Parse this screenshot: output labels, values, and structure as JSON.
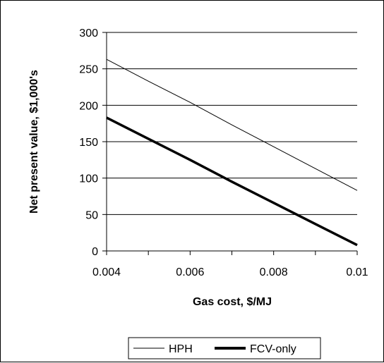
{
  "chart_data": {
    "type": "line",
    "title": "",
    "xlabel": "Gas cost, $/MJ",
    "ylabel": "Net present value, $1,000's",
    "xlim": [
      0.004,
      0.01
    ],
    "ylim": [
      0,
      300
    ],
    "x_ticks": [
      "0.004",
      "0.006",
      "0.008",
      "0.01"
    ],
    "y_ticks": [
      "0",
      "50",
      "100",
      "150",
      "200",
      "250",
      "300"
    ],
    "grid": "horizontal",
    "legend_position": "bottom",
    "series": [
      {
        "name": "HPH",
        "color": "#000000",
        "line_weight": "thin",
        "points": [
          [
            0.004,
            263
          ],
          [
            0.005,
            233
          ],
          [
            0.006,
            204
          ],
          [
            0.007,
            173
          ],
          [
            0.008,
            143
          ],
          [
            0.009,
            113
          ],
          [
            0.01,
            83
          ]
        ]
      },
      {
        "name": "FCV-only",
        "color": "#000000",
        "line_weight": "thick",
        "points": [
          [
            0.004,
            183
          ],
          [
            0.005,
            154
          ],
          [
            0.006,
            125
          ],
          [
            0.007,
            95
          ],
          [
            0.008,
            66
          ],
          [
            0.009,
            37
          ],
          [
            0.01,
            8
          ]
        ]
      }
    ]
  }
}
